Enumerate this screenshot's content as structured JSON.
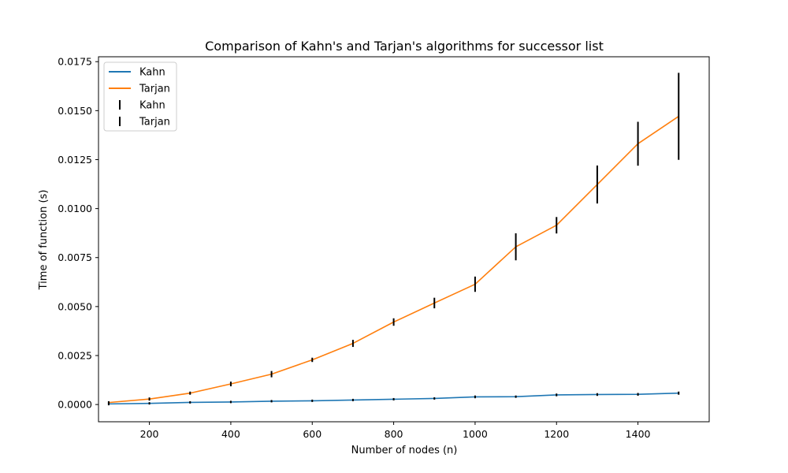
{
  "chart_data": {
    "type": "line",
    "title": "Comparison of Kahn's and Tarjan's algorithms for successor list",
    "xlabel": "Number of nodes (n)",
    "ylabel": "Time of function (s)",
    "xlim": [
      75,
      1575
    ],
    "ylim": [
      -0.00088,
      0.01775
    ],
    "xticks": [
      200,
      400,
      600,
      800,
      1000,
      1200,
      1400
    ],
    "xtick_labels": [
      "200",
      "400",
      "600",
      "800",
      "1000",
      "1200",
      "1400"
    ],
    "yticks": [
      0.0,
      0.0025,
      0.005,
      0.0075,
      0.01,
      0.0125,
      0.015,
      0.0175
    ],
    "ytick_labels": [
      "0.0000",
      "0.0025",
      "0.0050",
      "0.0075",
      "0.0100",
      "0.0125",
      "0.0150",
      "0.0175"
    ],
    "grid": false,
    "legend_position": "top-left",
    "legend": [
      {
        "label": "Kahn",
        "kind": "line",
        "color": "#1f77b4"
      },
      {
        "label": "Tarjan",
        "kind": "line",
        "color": "#ff7f0e"
      },
      {
        "label": "Kahn",
        "kind": "errorbar",
        "color": "#000000"
      },
      {
        "label": "Tarjan",
        "kind": "errorbar",
        "color": "#000000"
      }
    ],
    "x": [
      100,
      200,
      300,
      400,
      500,
      600,
      700,
      800,
      900,
      1000,
      1100,
      1200,
      1300,
      1400,
      1500
    ],
    "series": [
      {
        "name": "Kahn",
        "color": "#1f77b4",
        "values": [
          3e-05,
          6e-05,
          0.00011,
          0.00013,
          0.00017,
          0.00019,
          0.00023,
          0.00027,
          0.00031,
          0.00039,
          0.0004,
          0.00049,
          0.00051,
          0.00052,
          0.00058
        ],
        "errors": [
          3e-05,
          2e-05,
          2e-05,
          2e-05,
          2e-05,
          2e-05,
          2e-05,
          2e-05,
          2e-05,
          3e-05,
          2e-05,
          3e-05,
          3e-05,
          3e-05,
          4e-05
        ]
      },
      {
        "name": "Tarjan",
        "color": "#ff7f0e",
        "values": [
          0.0001,
          0.00028,
          0.00058,
          0.00105,
          0.00155,
          0.00228,
          0.00312,
          0.00421,
          0.00518,
          0.00614,
          0.00805,
          0.00915,
          0.01123,
          0.01331,
          0.01471
        ],
        "errors": [
          3e-05,
          4e-05,
          4e-05,
          8e-05,
          0.00012,
          7e-05,
          0.00014,
          0.00015,
          0.00023,
          0.00035,
          0.00065,
          0.00038,
          0.00093,
          0.00108,
          0.00218
        ]
      }
    ],
    "errorbar_color": "#000000"
  }
}
